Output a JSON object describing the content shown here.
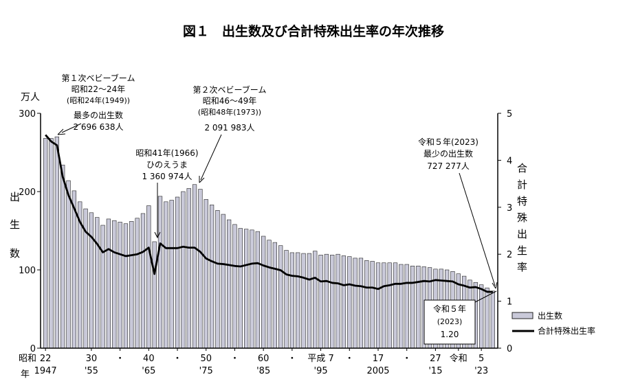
{
  "chart_data": {
    "type": "bar+line",
    "title": "図１　出生数及び合計特殊出生率の年次推移",
    "left_unit": "万人",
    "left_axis_chars": [
      "出",
      "生",
      "数"
    ],
    "right_axis_chars": [
      "合",
      "計",
      "特",
      "殊",
      "出",
      "生",
      "率"
    ],
    "ylim_left": [
      0,
      300
    ],
    "ylim_right": [
      0,
      5
    ],
    "left_ticks": [
      "0",
      "100",
      "200",
      "300"
    ],
    "right_ticks": [
      "0",
      "1",
      "2",
      "3",
      "4",
      "5"
    ],
    "x_start_year": 1947,
    "x_end_year": 2023,
    "x_ticks_top": [
      {
        "year": 1947,
        "label": "昭和 22"
      },
      {
        "year": 1955,
        "label": "30"
      },
      {
        "year": 1960,
        "label": "・"
      },
      {
        "year": 1965,
        "label": "40"
      },
      {
        "year": 1970,
        "label": "・"
      },
      {
        "year": 1975,
        "label": "50"
      },
      {
        "year": 1980,
        "label": "・"
      },
      {
        "year": 1985,
        "label": "60"
      },
      {
        "year": 1990,
        "label": "・"
      },
      {
        "year": 1995,
        "label": "平成 7"
      },
      {
        "year": 2000,
        "label": "・"
      },
      {
        "year": 2005,
        "label": "17"
      },
      {
        "year": 2010,
        "label": "・"
      },
      {
        "year": 2015,
        "label": "27"
      },
      {
        "year": 2019,
        "label": "令和"
      },
      {
        "year": 2023,
        "label": "5"
      }
    ],
    "x_ticks_bottom": [
      {
        "year": 1947,
        "label": "1947"
      },
      {
        "year": 1955,
        "label": "'55"
      },
      {
        "year": 1965,
        "label": "'65"
      },
      {
        "year": 1975,
        "label": "'75"
      },
      {
        "year": 1985,
        "label": "'85"
      },
      {
        "year": 1995,
        "label": "'95"
      },
      {
        "year": 2005,
        "label": "2005"
      },
      {
        "year": 2015,
        "label": "'15"
      },
      {
        "year": 2023,
        "label": "'23"
      }
    ],
    "x_corner_label": "年",
    "legend": [
      {
        "name": "出生数",
        "kind": "bar"
      },
      {
        "name": "合計特殊出生率",
        "kind": "line"
      }
    ],
    "births_man": [
      268,
      268,
      270,
      234,
      214,
      201,
      187,
      178,
      173,
      167,
      157,
      165,
      163,
      161,
      159,
      162,
      166,
      172,
      182,
      136,
      194,
      187,
      189,
      193,
      200,
      204,
      209,
      203,
      190,
      183,
      176,
      171,
      164,
      158,
      153,
      152,
      151,
      149,
      143,
      138,
      135,
      131,
      125,
      122,
      122,
      121,
      121,
      124,
      119,
      120,
      119,
      120,
      118,
      117,
      115,
      115,
      112,
      111,
      109,
      109,
      109,
      109,
      107,
      107,
      105,
      105,
      104,
      103,
      101,
      101,
      100,
      98,
      95,
      92,
      87,
      84,
      81,
      77,
      73
    ],
    "tfr": [
      4.54,
      4.4,
      4.32,
      3.65,
      3.26,
      2.98,
      2.69,
      2.48,
      2.37,
      2.22,
      2.04,
      2.11,
      2.04,
      2.0,
      1.96,
      1.98,
      2.0,
      2.05,
      2.14,
      1.58,
      2.23,
      2.13,
      2.13,
      2.13,
      2.16,
      2.14,
      2.14,
      2.05,
      1.91,
      1.85,
      1.8,
      1.79,
      1.77,
      1.75,
      1.74,
      1.77,
      1.8,
      1.81,
      1.76,
      1.72,
      1.69,
      1.66,
      1.57,
      1.54,
      1.53,
      1.5,
      1.46,
      1.5,
      1.42,
      1.43,
      1.39,
      1.38,
      1.34,
      1.36,
      1.33,
      1.32,
      1.29,
      1.29,
      1.26,
      1.32,
      1.34,
      1.37,
      1.37,
      1.39,
      1.39,
      1.41,
      1.43,
      1.42,
      1.45,
      1.44,
      1.43,
      1.42,
      1.36,
      1.33,
      1.29,
      1.3,
      1.26,
      1.2,
      1.2
    ]
  },
  "annotations": {
    "first_boom": {
      "lines": [
        "第１次ベビーブーム",
        "昭和22～24年",
        "(昭和24年(1949))",
        "最多の出生数",
        "2 696 638人"
      ]
    },
    "hinoeuma": {
      "lines": [
        "昭和41年(1966)",
        "ひのえうま",
        "1 360 974人"
      ]
    },
    "second_boom": {
      "lines": [
        "第２次ベビーブーム",
        "昭和46～49年",
        "(昭和48年(1973))",
        "2 091 983人"
      ]
    },
    "min_births": {
      "lines": [
        "令和５年(2023)",
        "最少の出生数",
        "727 277人"
      ]
    },
    "latest_tfr": {
      "lines": [
        "令和５年",
        "(2023)",
        "1.20"
      ]
    }
  },
  "colors": {
    "bar_fill": "#c9c9d9",
    "bar_stroke": "#222222",
    "line": "#000000"
  }
}
